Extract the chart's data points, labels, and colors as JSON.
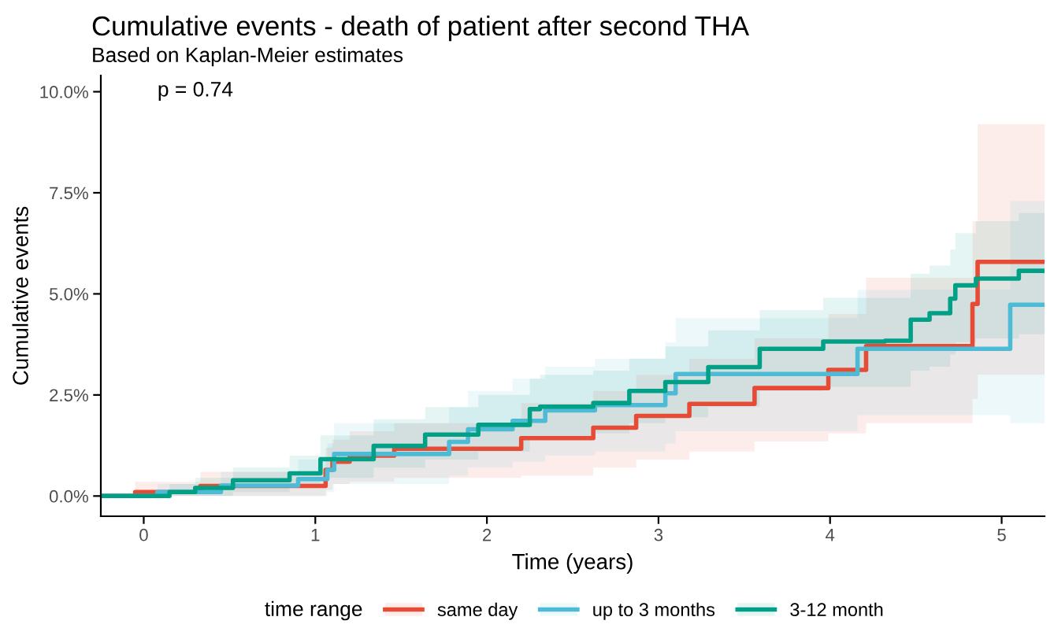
{
  "chart_data": {
    "type": "step",
    "title": "Cumulative events - death of patient after second THA",
    "subtitle": "Based on Kaplan-Meier estimates",
    "xlabel": "Time (years)",
    "ylabel": "Cumulative events",
    "legend_title": "time range",
    "legend": "bottom",
    "grid": false,
    "annotations": [
      "p = 0.74"
    ],
    "xlim": [
      -0.25,
      5.25
    ],
    "xticks": [
      0,
      1,
      2,
      3,
      4,
      5
    ],
    "ylim": [
      -0.5,
      10.4
    ],
    "yticks": [
      {
        "value": 0,
        "label": "0.0%"
      },
      {
        "value": 2.5,
        "label": "2.5%"
      },
      {
        "value": 5,
        "label": "5.0%"
      },
      {
        "value": 7.5,
        "label": "7.5%"
      },
      {
        "value": 10,
        "label": "10.0%"
      }
    ],
    "series": [
      {
        "name": "same day",
        "color": "#e64b35",
        "x": [
          -0.25,
          -0.05,
          0.33,
          1.06,
          1.1,
          1.2,
          1.46,
          2.2,
          2.62,
          2.87,
          3.18,
          3.56,
          3.99,
          4.21,
          4.83,
          4.86,
          5.25
        ],
        "values": [
          0,
          0.1,
          0.25,
          0.65,
          0.85,
          1.0,
          1.17,
          1.43,
          1.69,
          1.98,
          2.28,
          2.67,
          3.12,
          3.71,
          4.75,
          5.79,
          5.79
        ],
        "lower": [
          0,
          0,
          0,
          0.15,
          0.3,
          0.35,
          0.45,
          0.5,
          0.7,
          0.9,
          1.1,
          1.35,
          1.55,
          1.8,
          2.4,
          3.0,
          3.0
        ],
        "upper": [
          0,
          0.35,
          0.6,
          1.2,
          1.4,
          1.6,
          1.8,
          2.3,
          2.6,
          3.0,
          3.4,
          3.9,
          4.5,
          5.4,
          6.8,
          9.2,
          9.2
        ]
      },
      {
        "name": "up to 3 months",
        "color": "#4dbbd5",
        "x": [
          -0.25,
          0.08,
          0.45,
          0.9,
          1.07,
          1.11,
          1.78,
          1.89,
          2.15,
          2.34,
          2.63,
          3.04,
          3.1,
          4.16,
          5.05,
          5.25
        ],
        "values": [
          0,
          0.1,
          0.26,
          0.42,
          0.65,
          1.04,
          1.34,
          1.65,
          1.86,
          2.12,
          2.25,
          2.54,
          3.02,
          3.64,
          4.73,
          4.73
        ],
        "lower": [
          0,
          0,
          0,
          0,
          0.1,
          0.3,
          0.5,
          0.7,
          0.85,
          1.0,
          1.1,
          1.3,
          1.6,
          2.0,
          1.8,
          1.8
        ],
        "upper": [
          0,
          0.3,
          0.6,
          0.9,
          1.3,
          1.8,
          2.2,
          2.6,
          2.9,
          3.2,
          3.4,
          3.8,
          4.4,
          5.1,
          7.3,
          7.3
        ]
      },
      {
        "name": "3-12 month",
        "color": "#00a087",
        "x": [
          -0.25,
          0.15,
          0.3,
          0.52,
          0.85,
          1.03,
          1.34,
          1.64,
          1.95,
          2.25,
          2.31,
          2.62,
          2.83,
          3.04,
          3.29,
          3.59,
          3.96,
          4.32,
          4.47,
          4.58,
          4.7,
          4.73,
          4.85,
          5.1,
          5.25
        ],
        "values": [
          0,
          0.1,
          0.2,
          0.39,
          0.56,
          0.91,
          1.24,
          1.52,
          1.76,
          2.15,
          2.21,
          2.3,
          2.6,
          2.82,
          3.19,
          3.64,
          3.82,
          3.84,
          4.36,
          4.52,
          4.88,
          5.21,
          5.38,
          5.57,
          5.57
        ],
        "lower": [
          0,
          0,
          0,
          0.1,
          0.2,
          0.45,
          0.7,
          0.9,
          1.1,
          1.4,
          1.45,
          1.55,
          1.8,
          1.95,
          2.2,
          2.6,
          2.7,
          2.7,
          3.1,
          3.2,
          3.5,
          3.8,
          3.9,
          4.0,
          4.0
        ],
        "upper": [
          0,
          0.3,
          0.45,
          0.7,
          1.0,
          1.5,
          1.9,
          2.2,
          2.5,
          2.9,
          3.0,
          3.1,
          3.4,
          3.7,
          4.1,
          4.6,
          4.9,
          4.9,
          5.5,
          5.7,
          6.1,
          6.5,
          6.8,
          7.0,
          7.0
        ]
      }
    ]
  }
}
